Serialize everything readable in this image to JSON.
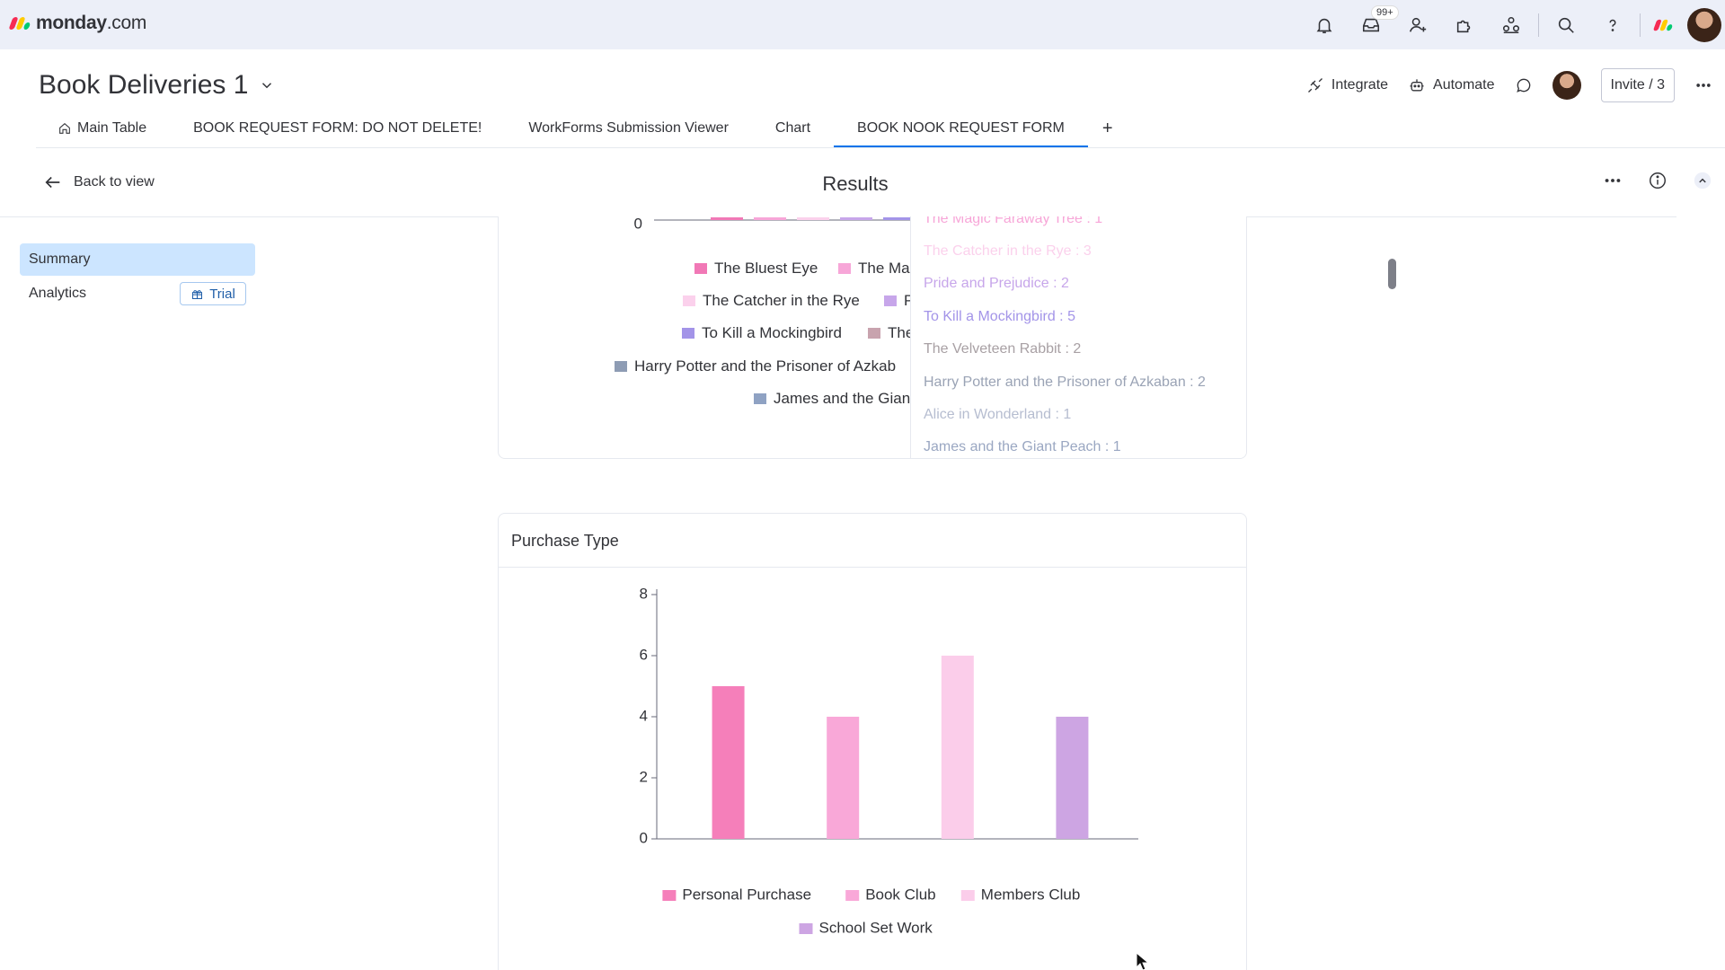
{
  "app": {
    "logo_word": "monday",
    "logo_tld": ".com",
    "logo_colors": [
      "#f62b54",
      "#ffcb00",
      "#00ca72"
    ],
    "notification_badge": "99+"
  },
  "topbar_icons": [
    "bell-icon",
    "inbox-icon",
    "invite-person-icon",
    "apps-icon",
    "integrations-icon",
    "search-icon",
    "help-icon"
  ],
  "board": {
    "title": "Book Deliveries 1",
    "integrate_label": "Integrate",
    "automate_label": "Automate",
    "invite_label": "Invite / 3"
  },
  "tabs": [
    {
      "label": "Main Table",
      "active": false
    },
    {
      "label": "BOOK REQUEST FORM: DO NOT DELETE!",
      "active": false
    },
    {
      "label": "WorkForms Submission Viewer",
      "active": false
    },
    {
      "label": "Chart",
      "active": false
    },
    {
      "label": "BOOK NOOK REQUEST FORM",
      "active": true
    }
  ],
  "tab_add_label": "+",
  "results": {
    "back_label": "Back to view",
    "title": "Results"
  },
  "sidebar": {
    "summary_label": "Summary",
    "analytics_label": "Analytics",
    "trial_label": "Trial"
  },
  "books_chart": {
    "zero_tick": "0",
    "legend": [
      {
        "label": "The Bluest Eye",
        "color": "#f178b6"
      },
      {
        "label": "The Ma",
        "color": "#f7a6d8"
      },
      {
        "label": "The Catcher in the Rye",
        "color": "#fbd1ec"
      },
      {
        "label": "P",
        "color": "#c7a6ea"
      },
      {
        "label": "To Kill a Mockingbird",
        "color": "#a394e8"
      },
      {
        "label": "The",
        "color": "#c8a3ae"
      },
      {
        "label": "Harry Potter and the Prisoner of Azkab",
        "color": "#8e9cb4"
      },
      {
        "label": "James and the Gian",
        "color": "#8fa2c3"
      }
    ],
    "tooltip_rows": [
      {
        "text": "The Magic Faraway Tree : 1",
        "color": "#f7a6d8"
      },
      {
        "text": "The Catcher in the Rye : 3",
        "color": "#fbd1ec"
      },
      {
        "text": "Pride and Prejudice : 2",
        "color": "#c7a6ea"
      },
      {
        "text": "To Kill a Mockingbird : 5",
        "color": "#a394e8"
      },
      {
        "text": "The Velveteen Rabbit : 2",
        "color": "#a8a0a4"
      },
      {
        "text": "Harry Potter and the Prisoner of Azkaban : 2",
        "color": "#9aa3b5"
      },
      {
        "text": "Alice in Wonderland : 1",
        "color": "#b6bdd0"
      },
      {
        "text": "James and the Giant Peach : 1",
        "color": "#9aa7c2"
      }
    ]
  },
  "purchase_card": {
    "title": "Purchase Type"
  },
  "chart_data": {
    "type": "bar",
    "title": "Purchase Type",
    "categories": [
      "Personal Purchase",
      "Book Club",
      "Members Club",
      "School Set Work"
    ],
    "values": [
      5,
      4,
      6,
      4
    ],
    "colors": [
      "#f57fba",
      "#f9a8d8",
      "#fbcdea",
      "#cda5e3"
    ],
    "ylim": [
      0,
      8
    ],
    "yticks": [
      0,
      2,
      4,
      6,
      8
    ],
    "xlabel": "",
    "ylabel": "",
    "legend_position": "bottom"
  }
}
